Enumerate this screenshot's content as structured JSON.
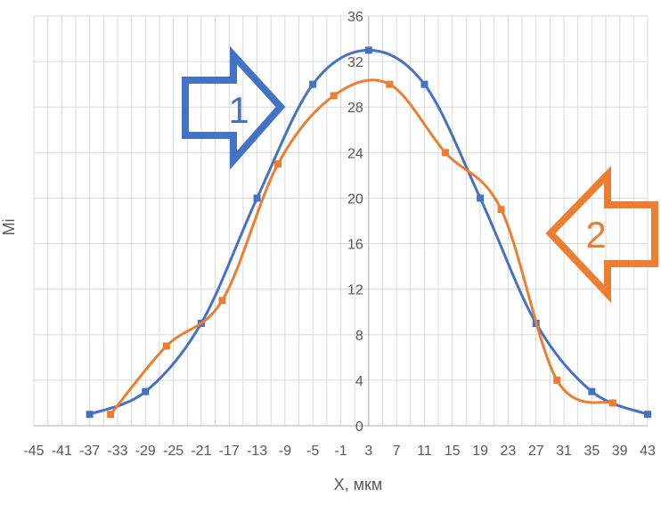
{
  "chart_data": {
    "type": "line",
    "xlabel": "X, мкм",
    "ylabel": "Mi",
    "x_ticks": [
      "-45",
      "-41",
      "-37",
      "-33",
      "-29",
      "-25",
      "-21",
      "-17",
      "-13",
      "-9",
      "-5",
      "-1",
      "3",
      "7",
      "11",
      "15",
      "19",
      "23",
      "27",
      "31",
      "35",
      "39",
      "43"
    ],
    "y_ticks": [
      "0",
      "4",
      "8",
      "12",
      "16",
      "20",
      "24",
      "28",
      "32",
      "36"
    ],
    "xlim": [
      -45,
      43
    ],
    "ylim": [
      0,
      36
    ],
    "grid": true,
    "smooth": true,
    "series": [
      {
        "name": "1",
        "color": "#4472c4",
        "x": [
          -37,
          -29,
          -21,
          -13,
          -5,
          3,
          11,
          19,
          27,
          35,
          43
        ],
        "y": [
          1,
          3,
          9,
          20,
          30,
          33,
          30,
          20,
          9,
          3,
          1
        ]
      },
      {
        "name": "2",
        "color": "#ed7d31",
        "x": [
          -34,
          -26,
          -18,
          -10,
          -2,
          6,
          14,
          22,
          30,
          38
        ],
        "y": [
          1,
          7,
          11,
          23,
          29,
          30,
          24,
          19,
          4,
          2
        ]
      }
    ],
    "annotations": [
      {
        "label": "1",
        "color": "#4472c4",
        "direction": "right"
      },
      {
        "label": "2",
        "color": "#ed7d31",
        "direction": "left"
      }
    ]
  }
}
